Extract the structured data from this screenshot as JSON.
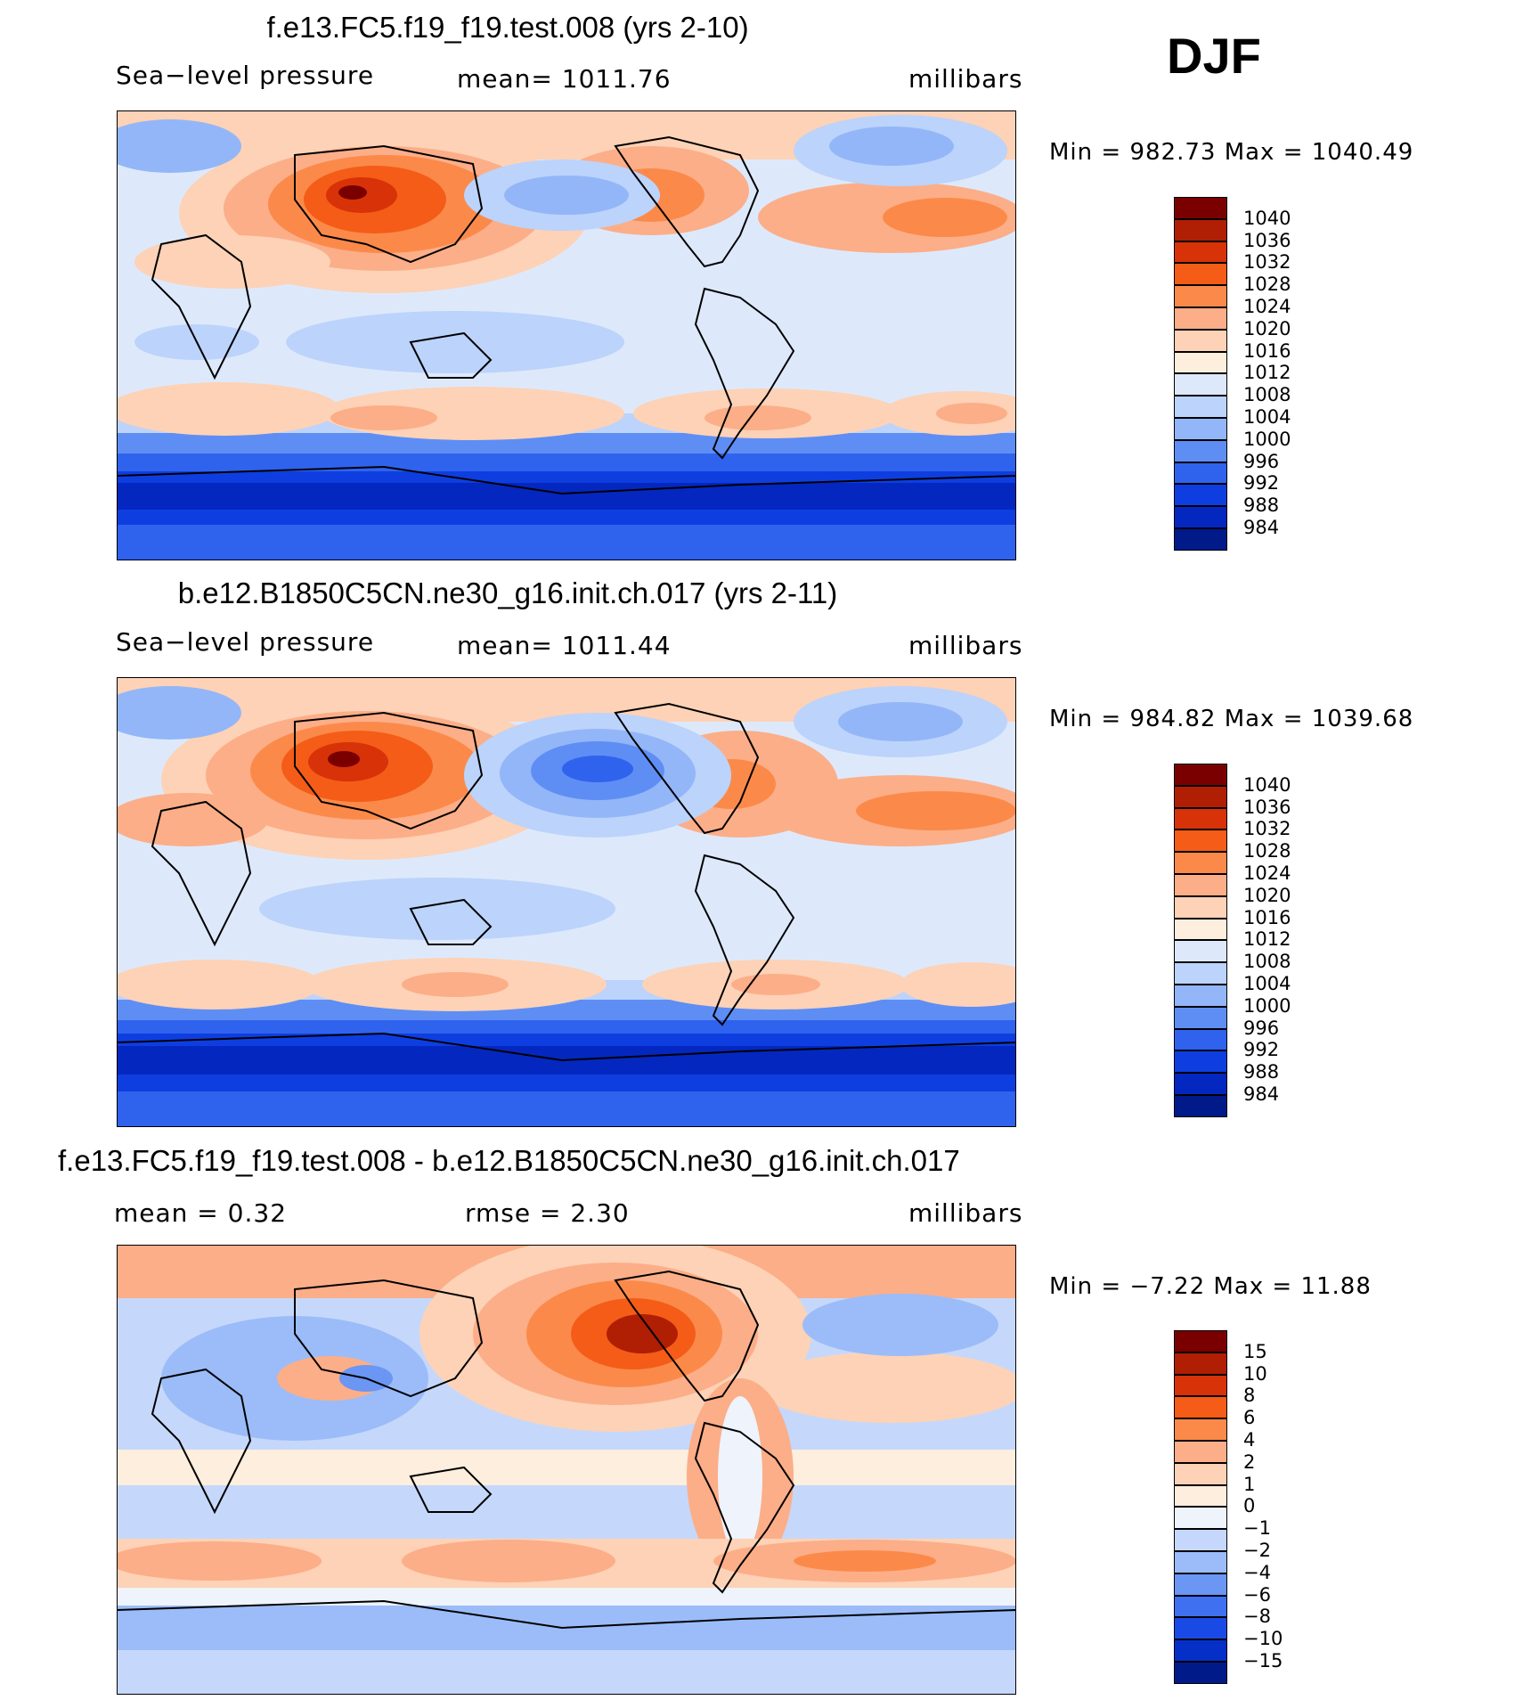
{
  "season": "DJF",
  "panels": [
    {
      "id": "model",
      "title": "f.e13.FC5.f19_f19.test.008 (yrs 2-10)",
      "variable": "Sea−level pressure",
      "stat": "mean=  1011.76",
      "units": "millibars",
      "minmax": "Min  =  982.73  Max  =  1040.49",
      "colorbar_labels": [
        "1040",
        "1036",
        "1032",
        "1028",
        "1024",
        "1020",
        "1016",
        "1012",
        "1008",
        "1004",
        "1000",
        "996",
        "992",
        "988",
        "984"
      ]
    },
    {
      "id": "obs",
      "title": "b.e12.B1850C5CN.ne30_g16.init.ch.017 (yrs 2-11)",
      "variable": "Sea−level pressure",
      "stat": "mean=  1011.44",
      "units": "millibars",
      "minmax": "Min  =  984.82  Max  =  1039.68",
      "colorbar_labels": [
        "1040",
        "1036",
        "1032",
        "1028",
        "1024",
        "1020",
        "1016",
        "1012",
        "1008",
        "1004",
        "1000",
        "996",
        "992",
        "988",
        "984"
      ]
    },
    {
      "id": "diff",
      "title": "f.e13.FC5.f19_f19.test.008 - b.e12.B1850C5CN.ne30_g16.init.ch.017",
      "variable": "mean  =      0.32",
      "stat": "rmse  =      2.30",
      "units": "millibars",
      "minmax": "Min  =    −7.22  Max  =    11.88",
      "colorbar_labels": [
        "15",
        "10",
        "8",
        "6",
        "4",
        "2",
        "1",
        "0",
        "−1",
        "−2",
        "−4",
        "−6",
        "−8",
        "−10",
        "−15"
      ]
    }
  ],
  "palettes": {
    "slp": [
      "#7a0000",
      "#b01e04",
      "#d83208",
      "#f45c18",
      "#fb8a4a",
      "#fcae88",
      "#fdd2b6",
      "#fdeedd",
      "#dde9fb",
      "#bcd3fb",
      "#93b6f8",
      "#5e8ef4",
      "#2f63ee",
      "#0e3ee0",
      "#0427c0",
      "#001a8a"
    ],
    "diff": [
      "#7a0000",
      "#b01e04",
      "#d83208",
      "#f45c18",
      "#fb8a4a",
      "#fcae88",
      "#fdd2b6",
      "#fdeedd",
      "#eef3fc",
      "#c5d8fb",
      "#9bbcf8",
      "#6b96f4",
      "#3f70ef",
      "#1a4ae6",
      "#0430c8",
      "#001a8a"
    ]
  }
}
